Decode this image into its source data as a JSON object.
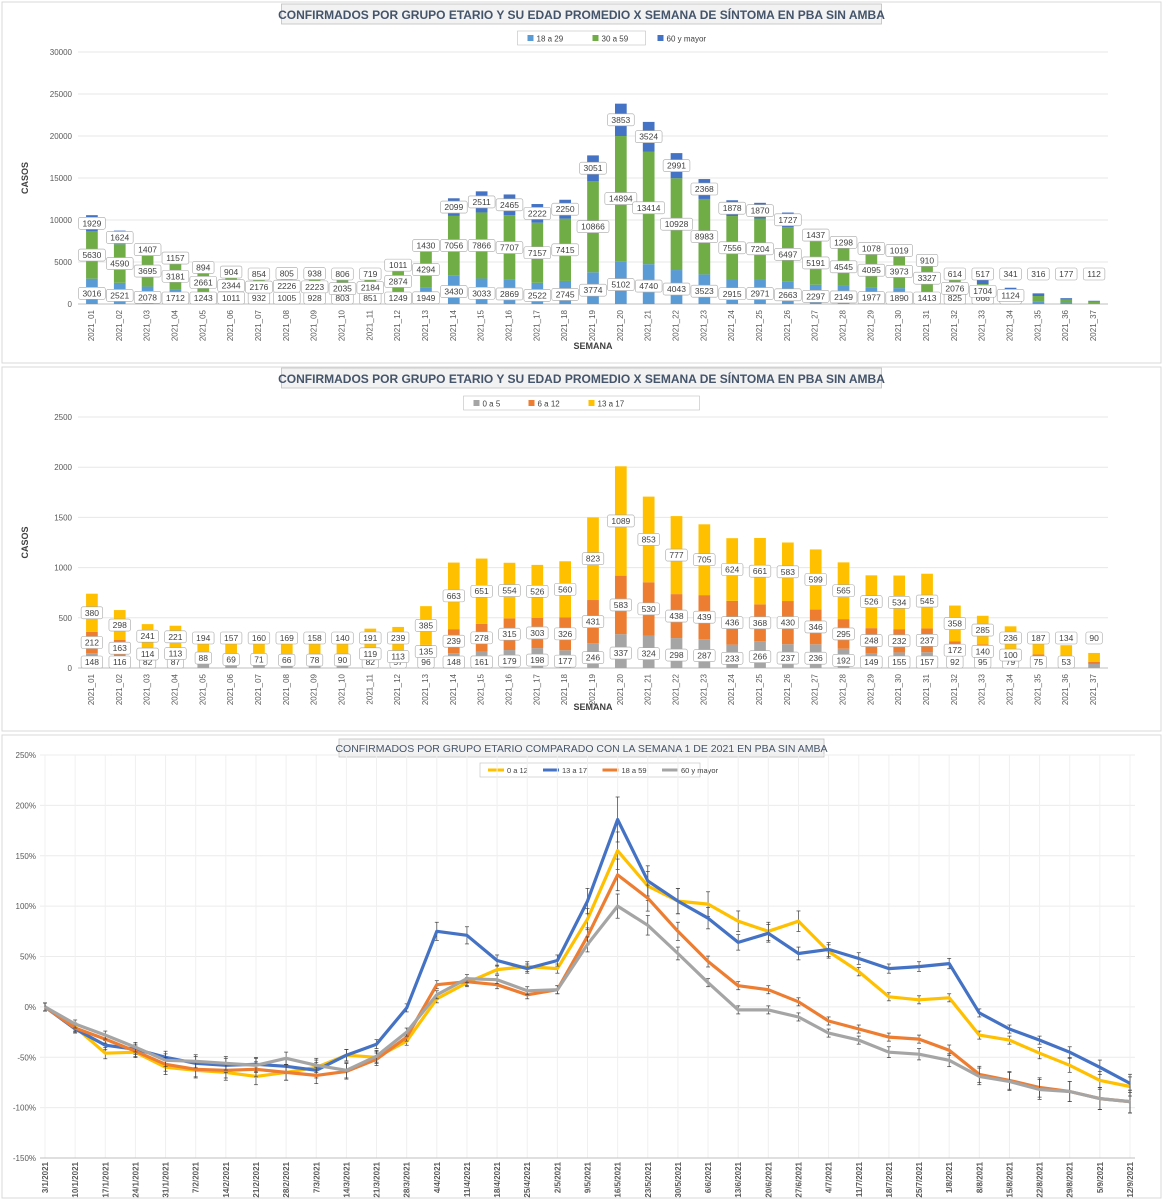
{
  "chart_data": [
    {
      "type": "bar",
      "stacked": true,
      "title": "CONFIRMADOS POR GRUPO ETARIO Y SU EDAD PROMEDIO X SEMANA DE SÍNTOMA EN PBA SIN AMBA",
      "xlabel": "SEMANA",
      "ylabel": "CASOS",
      "ylim": [
        0,
        30000
      ],
      "yticks": [
        "0",
        "5000",
        "10000",
        "15000",
        "20000",
        "25000",
        "30000"
      ],
      "legend_position": "top",
      "categories": [
        "2021_01",
        "2021_02",
        "2021_03",
        "2021_04",
        "2021_05",
        "2021_06",
        "2021_07",
        "2021_08",
        "2021_09",
        "2021_10",
        "2021_11",
        "2021_12",
        "2021_13",
        "2021_14",
        "2021_15",
        "2021_16",
        "2021_17",
        "2021_18",
        "2021_19",
        "2021_20",
        "2021_21",
        "2021_22",
        "2021_23",
        "2021_24",
        "2021_25",
        "2021_26",
        "2021_27",
        "2021_28",
        "2021_29",
        "2021_30",
        "2021_31",
        "2021_32",
        "2021_33",
        "2021_34",
        "2021_35",
        "2021_36",
        "2021_37"
      ],
      "series": [
        {
          "name": "18 a 29",
          "color": "#5b9bd5",
          "values": [
            3016,
            2521,
            2078,
            1712,
            1243,
            1011,
            932,
            1005,
            928,
            803,
            851,
            1249,
            1949,
            3430,
            3033,
            2869,
            2522,
            2745,
            3774,
            5102,
            4740,
            4043,
            3523,
            2915,
            2971,
            2663,
            2297,
            2149,
            1977,
            1890,
            1413,
            825,
            666,
            470,
            310,
            177,
            112
          ]
        },
        {
          "name": "30 a 59",
          "color": "#70ad47",
          "values": [
            5630,
            4590,
            3695,
            3181,
            2661,
            2344,
            2176,
            2226,
            2223,
            2035,
            2184,
            2874,
            4294,
            7056,
            7866,
            7707,
            7157,
            7415,
            10866,
            14894,
            13414,
            10928,
            8983,
            7556,
            7204,
            6497,
            5191,
            4545,
            4095,
            3973,
            3327,
            2076,
            1704,
            1124,
            640,
            340,
            160
          ]
        },
        {
          "name": "60 y mayor",
          "color": "#4472c4",
          "values": [
            1929,
            1624,
            1407,
            1157,
            894,
            904,
            854,
            805,
            938,
            806,
            719,
            1011,
            1430,
            2099,
            2511,
            2465,
            2222,
            2250,
            3051,
            3853,
            3524,
            2991,
            2368,
            1878,
            1870,
            1727,
            1437,
            1298,
            1078,
            1019,
            910,
            614,
            517,
            341,
            316,
            177,
            112
          ]
        }
      ],
      "data_labels": {
        "bottom": [
          "3016",
          "2521",
          "2078",
          "1712",
          "1243",
          "1011",
          "932",
          "1005",
          "928",
          "803",
          "851",
          "1249",
          "1949",
          "3430",
          "3033",
          "2869",
          "2522",
          "2745",
          "3774",
          "5102",
          "4740",
          "4043",
          "3523",
          "2915",
          "2971",
          "2663",
          "2297",
          "2149",
          "1977",
          "1890",
          "1413",
          "825",
          "666",
          "470",
          "",
          "",
          ""
        ],
        "middle": [
          "5630",
          "4590",
          "3695",
          "3181",
          "2661",
          "2344",
          "2176",
          "2226",
          "2223",
          "2035",
          "2184",
          "2874",
          "4294",
          "7056",
          "7866",
          "7707",
          "7157",
          "7415",
          "10866",
          "14894",
          "13414",
          "10928",
          "8983",
          "7556",
          "7204",
          "6497",
          "5191",
          "4545",
          "4095",
          "3973",
          "3327",
          "2076",
          "1704",
          "1124",
          "",
          "",
          ""
        ],
        "top": [
          "1929",
          "1624",
          "1407",
          "1157",
          "894",
          "904",
          "854",
          "805",
          "938",
          "806",
          "719",
          "1011",
          "1430",
          "2099",
          "2511",
          "2465",
          "2222",
          "2250",
          "3051",
          "3853",
          "3524",
          "2991",
          "2368",
          "1878",
          "1870",
          "1727",
          "1437",
          "1298",
          "1078",
          "1019",
          "910",
          "614",
          "517",
          "341",
          "316",
          "177",
          "112"
        ]
      }
    },
    {
      "type": "bar",
      "stacked": true,
      "title": "CONFIRMADOS POR GRUPO ETARIO Y SU EDAD PROMEDIO X SEMANA DE SÍNTOMA EN PBA SIN AMBA",
      "xlabel": "SEMANA",
      "ylabel": "CASOS",
      "ylim": [
        0,
        2500
      ],
      "yticks": [
        "0",
        "500",
        "1000",
        "1500",
        "2000",
        "2500"
      ],
      "legend_position": "top",
      "categories": [
        "2021_01",
        "2021_02",
        "2021_03",
        "2021_04",
        "2021_05",
        "2021_06",
        "2021_07",
        "2021_08",
        "2021_09",
        "2021_10",
        "2021_11",
        "2021_12",
        "2021_13",
        "2021_14",
        "2021_15",
        "2021_16",
        "2021_17",
        "2021_18",
        "2021_19",
        "2021_20",
        "2021_21",
        "2021_22",
        "2021_23",
        "2021_24",
        "2021_25",
        "2021_26",
        "2021_27",
        "2021_28",
        "2021_29",
        "2021_30",
        "2021_31",
        "2021_32",
        "2021_33",
        "2021_34",
        "2021_35",
        "2021_36",
        "2021_37"
      ],
      "series": [
        {
          "name": "0 a 5",
          "color": "#a5a5a5",
          "values": [
            148,
            116,
            82,
            87,
            55,
            50,
            50,
            45,
            40,
            35,
            82,
            57,
            96,
            148,
            161,
            179,
            198,
            177,
            246,
            337,
            324,
            298,
            287,
            233,
            266,
            237,
            236,
            192,
            149,
            155,
            157,
            92,
            95,
            79,
            75,
            53,
            40
          ]
        },
        {
          "name": "6 a 12",
          "color": "#ed7d31",
          "values": [
            212,
            163,
            114,
            113,
            88,
            69,
            71,
            66,
            78,
            90,
            119,
            113,
            135,
            239,
            278,
            315,
            303,
            326,
            431,
            583,
            530,
            438,
            439,
            436,
            368,
            430,
            346,
            295,
            248,
            232,
            237,
            172,
            140,
            100,
            60,
            40,
            20
          ]
        },
        {
          "name": "13 a 17",
          "color": "#ffc000",
          "values": [
            380,
            298,
            241,
            221,
            194,
            157,
            160,
            169,
            158,
            140,
            191,
            239,
            385,
            663,
            651,
            554,
            526,
            560,
            823,
            1089,
            853,
            777,
            705,
            624,
            661,
            583,
            599,
            565,
            526,
            534,
            545,
            358,
            285,
            236,
            187,
            134,
            90
          ]
        }
      ],
      "data_labels": {
        "bottom": [
          "148",
          "116",
          "82",
          "87",
          "",
          "",
          "",
          "",
          "",
          "",
          "82",
          "57",
          "96",
          "148",
          "161",
          "179",
          "198",
          "177",
          "246",
          "337",
          "324",
          "298",
          "287",
          "233",
          "266",
          "237",
          "236",
          "192",
          "149",
          "155",
          "157",
          "92",
          "95",
          "79",
          "75",
          "53",
          ""
        ],
        "middle": [
          "212",
          "163",
          "114",
          "113",
          "88",
          "69",
          "71",
          "66",
          "78",
          "90",
          "119",
          "113",
          "135",
          "239",
          "278",
          "315",
          "303",
          "326",
          "431",
          "583",
          "530",
          "438",
          "439",
          "436",
          "368",
          "430",
          "346",
          "295",
          "248",
          "232",
          "237",
          "172",
          "140",
          "100",
          "",
          "",
          ""
        ],
        "top": [
          "380",
          "298",
          "241",
          "221",
          "194",
          "157",
          "160",
          "169",
          "158",
          "140",
          "191",
          "239",
          "385",
          "663",
          "651",
          "554",
          "526",
          "560",
          "823",
          "1089",
          "853",
          "777",
          "705",
          "624",
          "661",
          "583",
          "599",
          "565",
          "526",
          "534",
          "545",
          "358",
          "285",
          "236",
          "187",
          "134",
          "90"
        ]
      }
    },
    {
      "type": "line",
      "title": "CONFIRMADOS POR GRUPO ETARIO COMPARADO CON LA SEMANA 1 DE 2021 EN PBA SIN AMBA",
      "xlabel": "",
      "ylabel": "",
      "ylim": [
        -150,
        250
      ],
      "yticks": [
        "-150%",
        "-100%",
        "-50%",
        "0%",
        "50%",
        "100%",
        "150%",
        "200%",
        "250%"
      ],
      "legend_position": "top",
      "x": [
        "3/1/2021",
        "10/1/2021",
        "17/1/2021",
        "24/1/2021",
        "31/1/2021",
        "7/2/2021",
        "14/2/2021",
        "21/2/2021",
        "28/2/2021",
        "7/3/2021",
        "14/3/2021",
        "21/3/2021",
        "28/3/2021",
        "4/4/2021",
        "11/4/2021",
        "18/4/2021",
        "25/4/2021",
        "2/5/2021",
        "9/5/2021",
        "16/5/2021",
        "23/5/2021",
        "30/5/2021",
        "6/6/2021",
        "13/6/2021",
        "20/6/2021",
        "27/6/2021",
        "4/7/2021",
        "11/7/2021",
        "18/7/2021",
        "25/7/2021",
        "1/8/2021",
        "8/8/2021",
        "15/8/2021",
        "22/8/2021",
        "29/8/2021",
        "5/9/2021",
        "12/9/2021"
      ],
      "series": [
        {
          "name": "0 a 12",
          "color": "#ffc000",
          "values": [
            0,
            -20,
            -46,
            -45,
            -60,
            -63,
            -65,
            -69,
            -65,
            -60,
            -48,
            -50,
            -34,
            8,
            24,
            37,
            40,
            38,
            87,
            155,
            120,
            105,
            102,
            85,
            75,
            85,
            55,
            35,
            10,
            7,
            9,
            -28,
            -33,
            -46,
            -58,
            -73,
            -79
          ]
        },
        {
          "name": "13 a 17",
          "color": "#4472c4",
          "values": [
            0,
            -22,
            -38,
            -42,
            -50,
            -56,
            -58,
            -57,
            -59,
            -63,
            -48,
            -37,
            -1,
            75,
            71,
            46,
            38,
            46,
            105,
            186,
            125,
            105,
            88,
            64,
            73,
            53,
            57,
            48,
            38,
            40,
            43,
            -6,
            -22,
            -33,
            -45,
            -60,
            -76
          ]
        },
        {
          "name": "18 a 59",
          "color": "#ed7d31",
          "values": [
            0,
            -21,
            -32,
            -44,
            -57,
            -62,
            -63,
            -62,
            -65,
            -68,
            -64,
            -52,
            -30,
            22,
            25,
            22,
            12,
            17,
            70,
            131,
            108,
            75,
            45,
            21,
            17,
            5,
            -14,
            -22,
            -30,
            -32,
            -43,
            -67,
            -73,
            -80,
            -84,
            -91,
            -94
          ]
        },
        {
          "name": "60 y mayor",
          "color": "#a5a5a5",
          "values": [
            0,
            -17,
            -28,
            -40,
            -53,
            -54,
            -56,
            -58,
            -51,
            -58,
            -63,
            -49,
            -25,
            12,
            28,
            27,
            16,
            17,
            62,
            100,
            81,
            53,
            24,
            -3,
            -3,
            -10,
            -26,
            -33,
            -45,
            -47,
            -53,
            -69,
            -74,
            -82,
            -84,
            -91,
            -94
          ]
        }
      ]
    }
  ]
}
